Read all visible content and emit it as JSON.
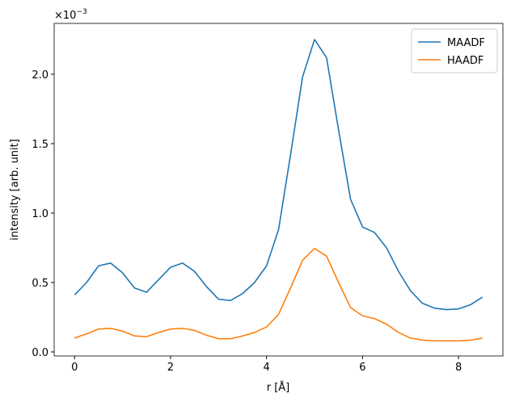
{
  "chart_data": {
    "type": "line",
    "xlabel": "r [Å]",
    "ylabel": "intensity [arb. unit]",
    "offset_text": {
      "base": "×10",
      "exponent": "−3"
    },
    "x": [
      0,
      0.25,
      0.5,
      0.75,
      1.0,
      1.25,
      1.5,
      1.75,
      2.0,
      2.25,
      2.5,
      2.75,
      3.0,
      3.25,
      3.5,
      3.75,
      4.0,
      4.25,
      4.5,
      4.75,
      5.0,
      5.25,
      5.5,
      5.75,
      6.0,
      6.25,
      6.5,
      6.75,
      7.0,
      7.25,
      7.5,
      7.75,
      8.0,
      8.25,
      8.5
    ],
    "series": [
      {
        "name": "MAADF",
        "color": "#1f77b4",
        "values": [
          0.41,
          0.5,
          0.62,
          0.64,
          0.57,
          0.46,
          0.43,
          0.52,
          0.61,
          0.64,
          0.58,
          0.47,
          0.38,
          0.37,
          0.42,
          0.5,
          0.62,
          0.88,
          1.42,
          1.98,
          2.25,
          2.12,
          1.6,
          1.1,
          0.9,
          0.86,
          0.75,
          0.58,
          0.44,
          0.35,
          0.315,
          0.305,
          0.31,
          0.34,
          0.395
        ]
      },
      {
        "name": "HAADF",
        "color": "#ff7f0e",
        "values": [
          0.1,
          0.13,
          0.165,
          0.17,
          0.15,
          0.115,
          0.11,
          0.14,
          0.165,
          0.17,
          0.155,
          0.12,
          0.095,
          0.095,
          0.115,
          0.14,
          0.18,
          0.27,
          0.46,
          0.66,
          0.745,
          0.69,
          0.5,
          0.32,
          0.26,
          0.24,
          0.2,
          0.14,
          0.1,
          0.085,
          0.08,
          0.08,
          0.08,
          0.085,
          0.1
        ]
      }
    ],
    "xlim": [
      -0.425,
      8.925
    ],
    "ylim": [
      -0.029,
      2.366
    ],
    "xticks": [
      0,
      2,
      4,
      6,
      8
    ],
    "yticks": [
      {
        "value": 0,
        "label": "0.0"
      },
      0.5,
      {
        "value": 1,
        "label": "1.0"
      },
      1.5,
      {
        "value": 2,
        "label": "2.0"
      }
    ],
    "grid": false,
    "legend": "upper right"
  }
}
